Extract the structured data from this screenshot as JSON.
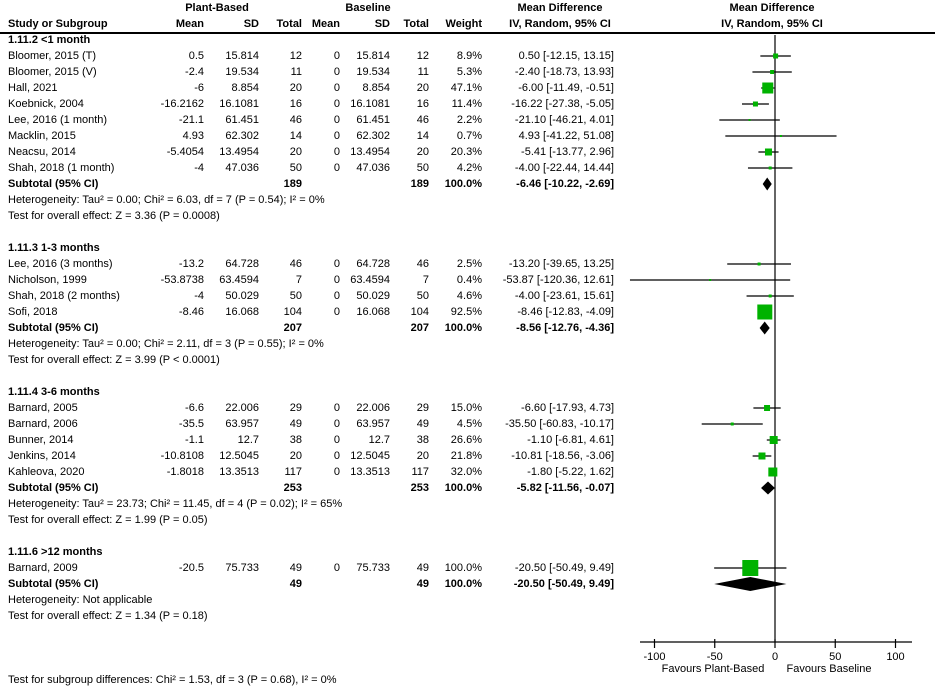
{
  "header": {
    "group1": "Plant-Based",
    "group2": "Baseline",
    "col_study": "Study or Subgroup",
    "col_mean1": "Mean",
    "col_sd1": "SD",
    "col_total1": "Total",
    "col_mean2": "Mean",
    "col_sd2": "SD",
    "col_total2": "Total",
    "col_weight": "Weight",
    "md_text_title": "Mean Difference",
    "md_text_sub": "IV, Random, 95% CI",
    "md_plot_title": "Mean Difference",
    "md_plot_sub": "IV, Random, 95% CI"
  },
  "colors": {
    "square": "#00b200",
    "diamond": "#000000",
    "line": "#000000",
    "text": "#000000",
    "background": "#ffffff"
  },
  "subgroups": [
    {
      "title": "1.11.2 <1 month",
      "studies": [
        {
          "label": "Bloomer, 2015 (T)",
          "mean1": "0.5",
          "sd1": "15.814",
          "total1": "12",
          "mean2": "0",
          "sd2": "15.814",
          "total2": "12",
          "weight": "8.9%",
          "ci_text": "0.50 [-12.15, 13.15]"
        },
        {
          "label": "Bloomer, 2015 (V)",
          "mean1": "-2.4",
          "sd1": "19.534",
          "total1": "11",
          "mean2": "0",
          "sd2": "19.534",
          "total2": "11",
          "weight": "5.3%",
          "ci_text": "-2.40 [-18.73, 13.93]"
        },
        {
          "label": "Hall, 2021",
          "mean1": "-6",
          "sd1": "8.854",
          "total1": "20",
          "mean2": "0",
          "sd2": "8.854",
          "total2": "20",
          "weight": "47.1%",
          "ci_text": "-6.00 [-11.49, -0.51]"
        },
        {
          "label": "Koebnick, 2004",
          "mean1": "-16.2162",
          "sd1": "16.1081",
          "total1": "16",
          "mean2": "0",
          "sd2": "16.1081",
          "total2": "16",
          "weight": "11.4%",
          "ci_text": "-16.22 [-27.38, -5.05]"
        },
        {
          "label": "Lee, 2016 (1 month)",
          "mean1": "-21.1",
          "sd1": "61.451",
          "total1": "46",
          "mean2": "0",
          "sd2": "61.451",
          "total2": "46",
          "weight": "2.2%",
          "ci_text": "-21.10 [-46.21, 4.01]"
        },
        {
          "label": "Macklin, 2015",
          "mean1": "4.93",
          "sd1": "62.302",
          "total1": "14",
          "mean2": "0",
          "sd2": "62.302",
          "total2": "14",
          "weight": "0.7%",
          "ci_text": "4.93 [-41.22, 51.08]"
        },
        {
          "label": "Neacsu, 2014",
          "mean1": "-5.4054",
          "sd1": "13.4954",
          "total1": "20",
          "mean2": "0",
          "sd2": "13.4954",
          "total2": "20",
          "weight": "20.3%",
          "ci_text": "-5.41 [-13.77, 2.96]"
        },
        {
          "label": "Shah, 2018 (1 month)",
          "mean1": "-4",
          "sd1": "47.036",
          "total1": "50",
          "mean2": "0",
          "sd2": "47.036",
          "total2": "50",
          "weight": "4.2%",
          "ci_text": "-4.00 [-22.44, 14.44]"
        }
      ],
      "subtotal": {
        "label": "Subtotal (95% CI)",
        "total1": "189",
        "total2": "189",
        "weight": "100.0%",
        "ci_text": "-6.46 [-10.22, -2.69]"
      },
      "heterogeneity": "Heterogeneity: Tau² = 0.00; Chi² = 6.03, df = 7 (P = 0.54); I² = 0%",
      "overall": "Test for overall effect: Z = 3.36 (P = 0.0008)"
    },
    {
      "title": "1.11.3 1-3 months",
      "studies": [
        {
          "label": "Lee, 2016 (3 months)",
          "mean1": "-13.2",
          "sd1": "64.728",
          "total1": "46",
          "mean2": "0",
          "sd2": "64.728",
          "total2": "46",
          "weight": "2.5%",
          "ci_text": "-13.20 [-39.65, 13.25]"
        },
        {
          "label": "Nicholson, 1999",
          "mean1": "-53.8738",
          "sd1": "63.4594",
          "total1": "7",
          "mean2": "0",
          "sd2": "63.4594",
          "total2": "7",
          "weight": "0.4%",
          "ci_text": "-53.87 [-120.36, 12.61]"
        },
        {
          "label": "Shah, 2018 (2 months)",
          "mean1": "-4",
          "sd1": "50.029",
          "total1": "50",
          "mean2": "0",
          "sd2": "50.029",
          "total2": "50",
          "weight": "4.6%",
          "ci_text": "-4.00 [-23.61, 15.61]"
        },
        {
          "label": "Sofi, 2018",
          "mean1": "-8.46",
          "sd1": "16.068",
          "total1": "104",
          "mean2": "0",
          "sd2": "16.068",
          "total2": "104",
          "weight": "92.5%",
          "ci_text": "-8.46 [-12.83, -4.09]"
        }
      ],
      "subtotal": {
        "label": "Subtotal (95% CI)",
        "total1": "207",
        "total2": "207",
        "weight": "100.0%",
        "ci_text": "-8.56 [-12.76, -4.36]"
      },
      "heterogeneity": "Heterogeneity: Tau² = 0.00; Chi² = 2.11, df = 3 (P = 0.55); I² = 0%",
      "overall": "Test for overall effect: Z = 3.99 (P < 0.0001)"
    },
    {
      "title": "1.11.4 3-6 months",
      "studies": [
        {
          "label": "Barnard, 2005",
          "mean1": "-6.6",
          "sd1": "22.006",
          "total1": "29",
          "mean2": "0",
          "sd2": "22.006",
          "total2": "29",
          "weight": "15.0%",
          "ci_text": "-6.60 [-17.93, 4.73]"
        },
        {
          "label": "Barnard, 2006",
          "mean1": "-35.5",
          "sd1": "63.957",
          "total1": "49",
          "mean2": "0",
          "sd2": "63.957",
          "total2": "49",
          "weight": "4.5%",
          "ci_text": "-35.50 [-60.83, -10.17]"
        },
        {
          "label": "Bunner, 2014",
          "mean1": "-1.1",
          "sd1": "12.7",
          "total1": "38",
          "mean2": "0",
          "sd2": "12.7",
          "total2": "38",
          "weight": "26.6%",
          "ci_text": "-1.10 [-6.81, 4.61]"
        },
        {
          "label": "Jenkins, 2014",
          "mean1": "-10.8108",
          "sd1": "12.5045",
          "total1": "20",
          "mean2": "0",
          "sd2": "12.5045",
          "total2": "20",
          "weight": "21.8%",
          "ci_text": "-10.81 [-18.56, -3.06]"
        },
        {
          "label": "Kahleova, 2020",
          "mean1": "-1.8018",
          "sd1": "13.3513",
          "total1": "117",
          "mean2": "0",
          "sd2": "13.3513",
          "total2": "117",
          "weight": "32.0%",
          "ci_text": "-1.80 [-5.22, 1.62]"
        }
      ],
      "subtotal": {
        "label": "Subtotal (95% CI)",
        "total1": "253",
        "total2": "253",
        "weight": "100.0%",
        "ci_text": "-5.82 [-11.56, -0.07]"
      },
      "heterogeneity": "Heterogeneity: Tau² = 23.73; Chi² = 11.45, df = 4 (P = 0.02); I² = 65%",
      "overall": "Test for overall effect: Z = 1.99 (P = 0.05)"
    },
    {
      "title": "1.11.6 >12 months",
      "studies": [
        {
          "label": "Barnard, 2009",
          "mean1": "-20.5",
          "sd1": "75.733",
          "total1": "49",
          "mean2": "0",
          "sd2": "75.733",
          "total2": "49",
          "weight": "100.0%",
          "ci_text": "-20.50 [-50.49, 9.49]"
        }
      ],
      "subtotal": {
        "label": "Subtotal (95% CI)",
        "total1": "49",
        "total2": "49",
        "weight": "100.0%",
        "ci_text": "-20.50 [-50.49, 9.49]"
      },
      "heterogeneity": "Heterogeneity: Not applicable",
      "overall": "Test for overall effect: Z = 1.34 (P = 0.18)"
    }
  ],
  "axis": {
    "favours_left": "Favours Plant-Based",
    "favours_right": "Favours Baseline"
  },
  "footer": "Test for subgroup differences: Chi² = 1.53, df = 3 (P = 0.68), I² = 0%",
  "chart_data": {
    "type": "scatter",
    "subtype": "forest-plot",
    "effect_measure": "Mean Difference, IV, Random, 95% CI",
    "xlim": [
      -100,
      100
    ],
    "xticks": [
      "-100",
      "-50",
      "0",
      "50",
      "100"
    ],
    "xlabel_left": "Favours Plant-Based",
    "xlabel_right": "Favours Baseline",
    "series": [
      {
        "subgroup": "1.11.2 <1 month",
        "points": [
          {
            "study": "Bloomer, 2015 (T)",
            "md": 0.5,
            "lo": -12.15,
            "hi": 13.15,
            "weight": 8.9
          },
          {
            "study": "Bloomer, 2015 (V)",
            "md": -2.4,
            "lo": -18.73,
            "hi": 13.93,
            "weight": 5.3
          },
          {
            "study": "Hall, 2021",
            "md": -6.0,
            "lo": -11.49,
            "hi": -0.51,
            "weight": 47.1
          },
          {
            "study": "Koebnick, 2004",
            "md": -16.22,
            "lo": -27.38,
            "hi": -5.05,
            "weight": 11.4
          },
          {
            "study": "Lee, 2016 (1 month)",
            "md": -21.1,
            "lo": -46.21,
            "hi": 4.01,
            "weight": 2.2
          },
          {
            "study": "Macklin, 2015",
            "md": 4.93,
            "lo": -41.22,
            "hi": 51.08,
            "weight": 0.7
          },
          {
            "study": "Neacsu, 2014",
            "md": -5.41,
            "lo": -13.77,
            "hi": 2.96,
            "weight": 20.3
          },
          {
            "study": "Shah, 2018 (1 month)",
            "md": -4.0,
            "lo": -22.44,
            "hi": 14.44,
            "weight": 4.2
          }
        ],
        "subtotal": {
          "md": -6.46,
          "lo": -10.22,
          "hi": -2.69
        }
      },
      {
        "subgroup": "1.11.3 1-3 months",
        "points": [
          {
            "study": "Lee, 2016 (3 months)",
            "md": -13.2,
            "lo": -39.65,
            "hi": 13.25,
            "weight": 2.5
          },
          {
            "study": "Nicholson, 1999",
            "md": -53.87,
            "lo": -120.36,
            "hi": 12.61,
            "weight": 0.4
          },
          {
            "study": "Shah, 2018 (2 months)",
            "md": -4.0,
            "lo": -23.61,
            "hi": 15.61,
            "weight": 4.6
          },
          {
            "study": "Sofi, 2018",
            "md": -8.46,
            "lo": -12.83,
            "hi": -4.09,
            "weight": 92.5
          }
        ],
        "subtotal": {
          "md": -8.56,
          "lo": -12.76,
          "hi": -4.36
        }
      },
      {
        "subgroup": "1.11.4 3-6 months",
        "points": [
          {
            "study": "Barnard, 2005",
            "md": -6.6,
            "lo": -17.93,
            "hi": 4.73,
            "weight": 15.0
          },
          {
            "study": "Barnard, 2006",
            "md": -35.5,
            "lo": -60.83,
            "hi": -10.17,
            "weight": 4.5
          },
          {
            "study": "Bunner, 2014",
            "md": -1.1,
            "lo": -6.81,
            "hi": 4.61,
            "weight": 26.6
          },
          {
            "study": "Jenkins, 2014",
            "md": -10.81,
            "lo": -18.56,
            "hi": -3.06,
            "weight": 21.8
          },
          {
            "study": "Kahleova, 2020",
            "md": -1.8,
            "lo": -5.22,
            "hi": 1.62,
            "weight": 32.0
          }
        ],
        "subtotal": {
          "md": -5.82,
          "lo": -11.56,
          "hi": -0.07
        }
      },
      {
        "subgroup": "1.11.6 >12 months",
        "points": [
          {
            "study": "Barnard, 2009",
            "md": -20.5,
            "lo": -50.49,
            "hi": 9.49,
            "weight": 100.0
          }
        ],
        "subtotal": {
          "md": -20.5,
          "lo": -50.49,
          "hi": 9.49
        }
      }
    ]
  }
}
